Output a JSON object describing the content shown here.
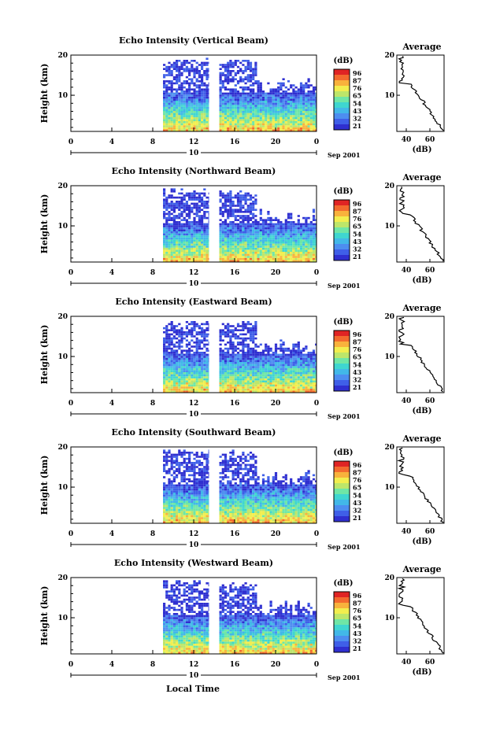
{
  "footer_label": "Local Time",
  "chart_data": [
    {
      "type": "heatmap",
      "title": "Echo Intensity (Vertical Beam)",
      "ylabel": "Height (km)",
      "x_ticks": [
        "0",
        "4",
        "8",
        "12",
        "16",
        "20",
        "0"
      ],
      "y_ticks": [
        "20",
        "10"
      ],
      "xlim": [
        0,
        24
      ],
      "ylim": [
        1,
        20
      ],
      "date_day": "10",
      "date_label": "Sep 2001",
      "colorbar": {
        "unit": "(dB)",
        "ticks": [
          "96",
          "87",
          "76",
          "65",
          "54",
          "43",
          "32",
          "21"
        ]
      },
      "data_gaps": [
        [
          0,
          9
        ],
        [
          13.5,
          14.5
        ],
        [
          24,
          24
        ]
      ],
      "average_panel": {
        "title": "Average",
        "xlabel": "(dB)",
        "x_ticks": [
          "40",
          "60"
        ],
        "y_ticks": [
          "20",
          "10"
        ]
      }
    },
    {
      "type": "heatmap",
      "title": "Echo Intensity (Northward Beam)",
      "ylabel": "Height (km)",
      "x_ticks": [
        "0",
        "4",
        "8",
        "12",
        "16",
        "20",
        "0"
      ],
      "y_ticks": [
        "20",
        "10"
      ],
      "xlim": [
        0,
        24
      ],
      "ylim": [
        1,
        20
      ],
      "date_day": "10",
      "date_label": "Sep 2001",
      "colorbar": {
        "unit": "(dB)",
        "ticks": [
          "96",
          "87",
          "76",
          "65",
          "54",
          "43",
          "32",
          "21"
        ]
      },
      "data_gaps": [
        [
          0,
          9
        ],
        [
          13.5,
          14.5
        ],
        [
          24,
          24
        ]
      ],
      "average_panel": {
        "title": "Average",
        "xlabel": "(dB)",
        "x_ticks": [
          "40",
          "60"
        ],
        "y_ticks": [
          "20",
          "10"
        ]
      }
    },
    {
      "type": "heatmap",
      "title": "Echo Intensity (Eastward Beam)",
      "ylabel": "Height (km)",
      "x_ticks": [
        "0",
        "4",
        "8",
        "12",
        "16",
        "20",
        "0"
      ],
      "y_ticks": [
        "20",
        "10"
      ],
      "xlim": [
        0,
        24
      ],
      "ylim": [
        1,
        20
      ],
      "date_day": "10",
      "date_label": "Sep 2001",
      "colorbar": {
        "unit": "(dB)",
        "ticks": [
          "96",
          "87",
          "76",
          "65",
          "54",
          "43",
          "32",
          "21"
        ]
      },
      "data_gaps": [
        [
          0,
          9
        ],
        [
          13.5,
          14.5
        ],
        [
          24,
          24
        ]
      ],
      "average_panel": {
        "title": "Average",
        "xlabel": "(dB)",
        "x_ticks": [
          "40",
          "60"
        ],
        "y_ticks": [
          "20",
          "10"
        ]
      }
    },
    {
      "type": "heatmap",
      "title": "Echo Intensity (Southward Beam)",
      "ylabel": "Height (km)",
      "x_ticks": [
        "0",
        "4",
        "8",
        "12",
        "16",
        "20",
        "0"
      ],
      "y_ticks": [
        "20",
        "10"
      ],
      "xlim": [
        0,
        24
      ],
      "ylim": [
        1,
        20
      ],
      "date_day": "10",
      "date_label": "Sep 2001",
      "colorbar": {
        "unit": "(dB)",
        "ticks": [
          "96",
          "87",
          "76",
          "65",
          "54",
          "43",
          "32",
          "21"
        ]
      },
      "data_gaps": [
        [
          0,
          9
        ],
        [
          13.5,
          14.5
        ],
        [
          24,
          24
        ]
      ],
      "average_panel": {
        "title": "Average",
        "xlabel": "(dB)",
        "x_ticks": [
          "40",
          "60"
        ],
        "y_ticks": [
          "20",
          "10"
        ]
      }
    },
    {
      "type": "heatmap",
      "title": "Echo Intensity (Westward Beam)",
      "ylabel": "Height (km)",
      "x_ticks": [
        "0",
        "4",
        "8",
        "12",
        "16",
        "20",
        "0"
      ],
      "y_ticks": [
        "20",
        "10"
      ],
      "xlim": [
        0,
        24
      ],
      "ylim": [
        1,
        20
      ],
      "date_day": "10",
      "date_label": "Sep 2001",
      "colorbar": {
        "unit": "(dB)",
        "ticks": [
          "96",
          "87",
          "76",
          "65",
          "54",
          "43",
          "32",
          "21"
        ]
      },
      "data_gaps": [
        [
          0,
          9
        ],
        [
          13.5,
          14.5
        ],
        [
          24,
          24
        ]
      ],
      "average_panel": {
        "title": "Average",
        "xlabel": "(dB)",
        "x_ticks": [
          "40",
          "60"
        ],
        "y_ticks": [
          "20",
          "10"
        ]
      }
    }
  ]
}
